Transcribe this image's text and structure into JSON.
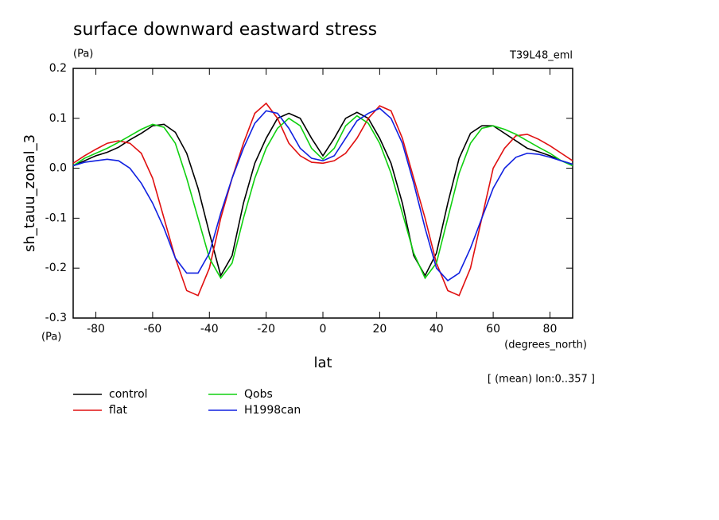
{
  "chart_data": {
    "type": "line",
    "title": "surface downward eastward stress",
    "y_units": "(Pa)",
    "run_label": "T39L48_eml",
    "y_label": "sh_tauu_zonal_3",
    "y_units_bottom": "(Pa)",
    "x_units": "(degrees_north)",
    "x_label": "lat",
    "note": "[ (mean) lon:0..357 ]",
    "xlim": [
      -88,
      88
    ],
    "ylim": [
      -0.3,
      0.2
    ],
    "xticks": [
      -80,
      -60,
      -40,
      -20,
      0,
      20,
      40,
      60,
      80
    ],
    "yticks": [
      -0.3,
      -0.2,
      -0.1,
      {
        "value": 0,
        "label": "0.0"
      },
      0.1,
      0.2
    ],
    "grid": false,
    "x": [
      -88,
      -84,
      -80,
      -76,
      -72,
      -68,
      -64,
      -60,
      -56,
      -52,
      -48,
      -44,
      -40,
      -36,
      -32,
      -28,
      -24,
      -20,
      -16,
      -12,
      -8,
      -4,
      0,
      4,
      8,
      12,
      16,
      20,
      24,
      28,
      32,
      36,
      40,
      44,
      48,
      52,
      56,
      60,
      64,
      68,
      72,
      76,
      80,
      84,
      88
    ],
    "series": [
      {
        "name": "control",
        "color": "#000000",
        "values": [
          0.005,
          0.015,
          0.025,
          0.032,
          0.042,
          0.057,
          0.07,
          0.085,
          0.088,
          0.072,
          0.03,
          -0.04,
          -0.13,
          -0.215,
          -0.175,
          -0.07,
          0.01,
          0.06,
          0.1,
          0.11,
          0.1,
          0.06,
          0.025,
          0.06,
          0.1,
          0.112,
          0.1,
          0.06,
          0.01,
          -0.07,
          -0.175,
          -0.215,
          -0.17,
          -0.07,
          0.02,
          0.07,
          0.085,
          0.085,
          0.07,
          0.055,
          0.04,
          0.033,
          0.025,
          0.015,
          0.008
        ]
      },
      {
        "name": "flat",
        "color": "#e01010",
        "values": [
          0.01,
          0.025,
          0.038,
          0.05,
          0.055,
          0.05,
          0.03,
          -0.02,
          -0.1,
          -0.18,
          -0.245,
          -0.255,
          -0.2,
          -0.1,
          -0.02,
          0.05,
          0.11,
          0.13,
          0.1,
          0.05,
          0.025,
          0.012,
          0.01,
          0.015,
          0.03,
          0.06,
          0.1,
          0.125,
          0.115,
          0.06,
          -0.02,
          -0.1,
          -0.19,
          -0.245,
          -0.255,
          -0.2,
          -0.1,
          0.0,
          0.04,
          0.065,
          0.068,
          0.058,
          0.045,
          0.03,
          0.015
        ]
      },
      {
        "name": "Qobs",
        "color": "#10d010",
        "values": [
          0.005,
          0.02,
          0.03,
          0.04,
          0.052,
          0.065,
          0.078,
          0.088,
          0.082,
          0.05,
          -0.02,
          -0.1,
          -0.18,
          -0.22,
          -0.19,
          -0.1,
          -0.02,
          0.04,
          0.08,
          0.1,
          0.085,
          0.04,
          0.018,
          0.04,
          0.085,
          0.105,
          0.09,
          0.05,
          -0.01,
          -0.09,
          -0.17,
          -0.22,
          -0.19,
          -0.1,
          -0.01,
          0.05,
          0.08,
          0.085,
          0.078,
          0.068,
          0.055,
          0.042,
          0.03,
          0.015,
          0.005
        ]
      },
      {
        "name": "H1998can",
        "color": "#1020e0",
        "values": [
          0.005,
          0.012,
          0.015,
          0.018,
          0.015,
          0.0,
          -0.03,
          -0.07,
          -0.12,
          -0.18,
          -0.21,
          -0.21,
          -0.17,
          -0.09,
          -0.02,
          0.04,
          0.09,
          0.115,
          0.11,
          0.08,
          0.04,
          0.02,
          0.015,
          0.025,
          0.06,
          0.095,
          0.11,
          0.12,
          0.1,
          0.05,
          -0.03,
          -0.12,
          -0.2,
          -0.225,
          -0.21,
          -0.16,
          -0.1,
          -0.04,
          0.0,
          0.022,
          0.03,
          0.028,
          0.022,
          0.015,
          0.008
        ]
      }
    ]
  }
}
